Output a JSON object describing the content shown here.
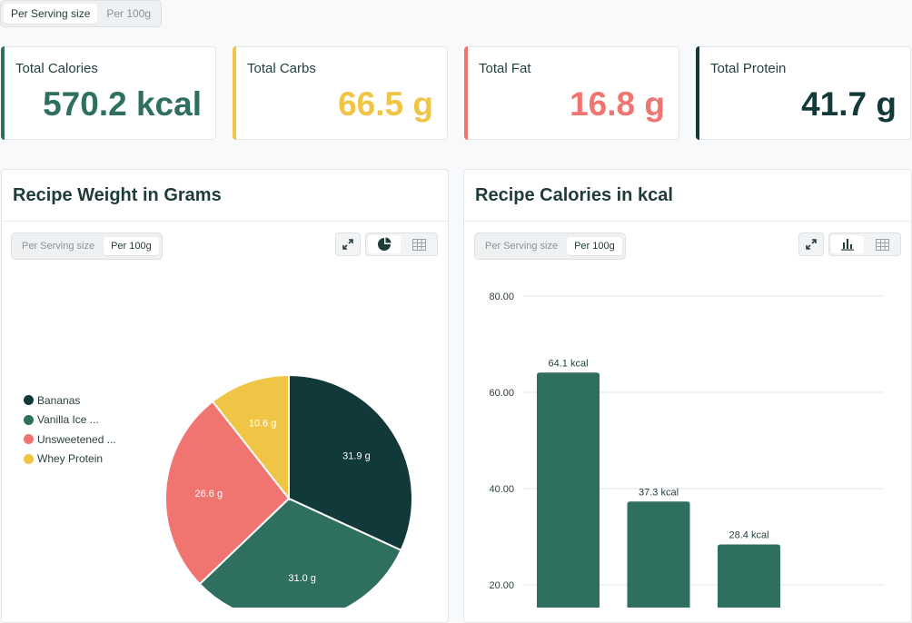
{
  "top_toggle": {
    "options": [
      "Per Serving size",
      "Per 100g"
    ],
    "active": 0
  },
  "summary_cards": [
    {
      "label": "Total Calories",
      "value": "570.2 kcal",
      "color": "#2f6f5f"
    },
    {
      "label": "Total Carbs",
      "value": "66.5 g",
      "color": "#f0c545"
    },
    {
      "label": "Total Fat",
      "value": "16.8 g",
      "color": "#f07470"
    },
    {
      "label": "Total Protein",
      "value": "41.7 g",
      "color": "#12393a"
    }
  ],
  "weight_panel": {
    "title": "Recipe Weight in Grams",
    "toggle": {
      "options": [
        "Per Serving size",
        "Per 100g"
      ],
      "active": 1
    },
    "icons": [
      "expand-icon",
      "pie-chart-icon",
      "table-icon"
    ],
    "legend": [
      "Bananas",
      "Vanilla Ice ...",
      "Unsweetened ...",
      "Whey Protein"
    ]
  },
  "calories_panel": {
    "title": "Recipe Calories in kcal",
    "toggle": {
      "options": [
        "Per Serving size",
        "Per 100g"
      ],
      "active": 1
    },
    "icons": [
      "expand-icon",
      "bar-chart-icon",
      "table-icon"
    ]
  },
  "chart_data": [
    {
      "type": "pie",
      "title": "Recipe Weight in Grams",
      "labels": [
        "Bananas",
        "Vanilla Ice ...",
        "Unsweetened ...",
        "Whey Protein"
      ],
      "values": [
        31.9,
        31.0,
        26.6,
        10.6
      ],
      "value_labels": [
        "31.9 g",
        "31.0 g",
        "26.6 g",
        "10.6 g"
      ],
      "colors": [
        "#12393a",
        "#2f6f5f",
        "#f07470",
        "#f0c545"
      ],
      "legend_position": "left"
    },
    {
      "type": "bar",
      "title": "Recipe Calories in kcal",
      "values": [
        64.1,
        37.3,
        28.4
      ],
      "value_labels": [
        "64.1 kcal",
        "37.3 kcal",
        "28.4 kcal"
      ],
      "yticks": [
        "80.00",
        "60.00",
        "40.00",
        "20.00"
      ],
      "ytick_values": [
        80,
        60,
        40,
        20
      ],
      "ylim": [
        0,
        80
      ],
      "color": "#2f6f5f",
      "grid": true
    }
  ]
}
